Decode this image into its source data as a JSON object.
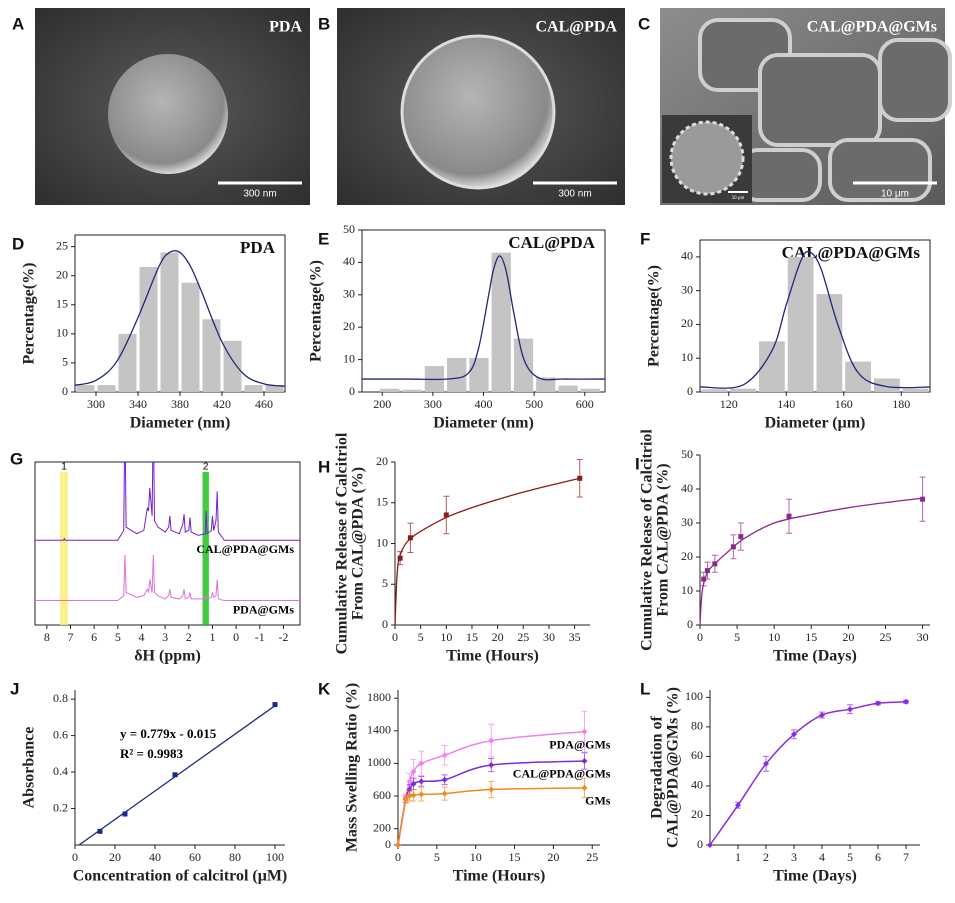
{
  "images": [
    {
      "panel": "A",
      "label": "PDA",
      "scale": "300 nm"
    },
    {
      "panel": "B",
      "label": "CAL@PDA",
      "scale": "300 nm"
    },
    {
      "panel": "C",
      "label": "CAL@PDA@GMs",
      "scale": "10 μm",
      "inset_scale": "50 μm"
    }
  ],
  "chart_data": [
    {
      "type": "histogram",
      "panel": "D",
      "annotation": "PDA",
      "xlabel": "Diameter (nm)",
      "ylabel": "Percentage(%)",
      "bins": [
        280,
        300,
        320,
        340,
        360,
        380,
        400,
        420,
        440,
        460,
        480
      ],
      "values": [
        1.2,
        1.2,
        10,
        21.5,
        24,
        18.8,
        12.5,
        8.8,
        1.2,
        1.2
      ],
      "color": "#c4c4c4",
      "fit": {
        "color": "#1f2a7a",
        "x": [
          280,
          300,
          320,
          340,
          360,
          370,
          380,
          390,
          400,
          420,
          440,
          460,
          480
        ],
        "values": [
          1.16,
          2.0,
          5.3,
          12.8,
          21.6,
          24.0,
          24.0,
          21.6,
          17.5,
          8.6,
          3.2,
          1.4,
          1.0
        ]
      },
      "xlim": [
        280,
        480
      ],
      "xticks": [
        300,
        340,
        380,
        420,
        460
      ],
      "ylim": [
        0,
        27
      ],
      "yticks": [
        0,
        5,
        10,
        15,
        20,
        25
      ],
      "frame": true
    },
    {
      "type": "histogram",
      "panel": "E",
      "annotation": "CAL@PDA",
      "xlabel": "Diameter (nm)",
      "ylabel": "Percentage(%)",
      "bins": [
        193,
        237,
        281,
        325,
        369,
        413,
        457,
        501,
        545,
        589,
        633
      ],
      "values": [
        1,
        0.7,
        8,
        10.5,
        10.5,
        43,
        16.5,
        4.5,
        2,
        1
      ],
      "color": "#c4c4c4",
      "fit": {
        "color": "#1f2a7a",
        "x": [
          160,
          250,
          330,
          370,
          390,
          410,
          420,
          432,
          445,
          460,
          480,
          510,
          560,
          640
        ],
        "values": [
          4,
          4,
          4.0,
          5.8,
          13.3,
          29.8,
          37.9,
          42,
          37.2,
          24.3,
          10.0,
          4.3,
          4,
          4
        ]
      },
      "xlim": [
        160,
        640
      ],
      "xticks": [
        200,
        300,
        400,
        500,
        600
      ],
      "ylim": [
        0,
        50
      ],
      "yticks": [
        0,
        10,
        20,
        30,
        40,
        50
      ],
      "frame": true
    },
    {
      "type": "histogram",
      "panel": "F",
      "annotation": "CAL@PDA@GMs",
      "xlabel": "Diameter (μm)",
      "ylabel": "Percentage(%)",
      "bins": [
        110,
        120,
        130,
        140,
        150,
        160,
        170,
        180,
        190
      ],
      "values": [
        0.8,
        1,
        15,
        40,
        29,
        9,
        4,
        1
      ],
      "color": "#c4c4c4",
      "fit": {
        "color": "#1f2a7a",
        "x": [
          110,
          125,
          135,
          140,
          145,
          148,
          152,
          158,
          165,
          175,
          190
        ],
        "values": [
          1.5,
          2.1,
          12.2,
          25.8,
          38.7,
          41.5,
          36.7,
          19.8,
          5.7,
          1.6,
          1.5
        ]
      },
      "xlim": [
        110,
        190
      ],
      "xticks": [
        120,
        140,
        160,
        180
      ],
      "ylim": [
        0,
        45
      ],
      "yticks": [
        0,
        10,
        20,
        30,
        40
      ],
      "frame": true
    },
    {
      "type": "spectrum",
      "panel": "G",
      "xlabel": "δH (ppm)",
      "highlights": [
        {
          "label": "1",
          "from": 7.45,
          "to": 7.1,
          "color": "#f7f07a"
        },
        {
          "label": "2",
          "from": 1.42,
          "to": 1.15,
          "color": "#1ec31e"
        }
      ],
      "series": [
        {
          "name": "CAL@PDA@GMs",
          "color": "#7420d0",
          "x": [
            8.5,
            7.3,
            7.26,
            7.22,
            5.0,
            4.75,
            4.7,
            4.65,
            4.2,
            3.9,
            3.75,
            3.7,
            3.65,
            3.55,
            3.5,
            3.45,
            3.3,
            3.0,
            2.85,
            2.8,
            2.75,
            2.4,
            2.25,
            2.2,
            2.15,
            2.0,
            1.95,
            1.9,
            1.6,
            1.3,
            1.27,
            1.22,
            1.05,
            1.0,
            0.95,
            0.85,
            0.8,
            0.75,
            0.5,
            -2.7
          ],
          "values": [
            52,
            52,
            53,
            52,
            52,
            58,
            130,
            60,
            56,
            58,
            72,
            70,
            84,
            67,
            130,
            64,
            60,
            57,
            60,
            67,
            58,
            56,
            62,
            68,
            57,
            58,
            66,
            57,
            55,
            56,
            70,
            56,
            58,
            67,
            58,
            64,
            82,
            57,
            52,
            52
          ]
        },
        {
          "name": "PDA@GMs",
          "color": "#e36ee0",
          "x": [
            8.5,
            7.3,
            7.26,
            7.22,
            5.0,
            4.75,
            4.7,
            4.65,
            4.2,
            3.9,
            3.75,
            3.7,
            3.65,
            3.55,
            3.5,
            3.45,
            3.3,
            3.0,
            2.85,
            2.8,
            2.75,
            2.4,
            2.25,
            2.2,
            2.15,
            2.0,
            1.95,
            1.9,
            1.6,
            1.3,
            1.27,
            1.22,
            1.05,
            1.0,
            0.95,
            0.85,
            0.8,
            0.75,
            0.5,
            -2.7
          ],
          "values": [
            15,
            15,
            15,
            15,
            15,
            18,
            43,
            20,
            17,
            18,
            22,
            20,
            28,
            20,
            43,
            20,
            18,
            16,
            18,
            22,
            17,
            16,
            18,
            22,
            16,
            17,
            20,
            16,
            16,
            16,
            18,
            16,
            17,
            20,
            17,
            18,
            28,
            16,
            15,
            15
          ]
        }
      ],
      "xlim": [
        8.5,
        -2.7
      ],
      "xticks": [
        8,
        7,
        6,
        5,
        4,
        3,
        2,
        1,
        0,
        -1,
        -2
      ],
      "ylim": [
        0,
        100
      ],
      "frame": true
    },
    {
      "type": "scatter",
      "panel": "H",
      "xlabel": "Time (Hours)",
      "ylabel": [
        "Cumulative Release of Calcitriol",
        "From CAL@PDA  (%)"
      ],
      "color": "#8b1a1a",
      "x": [
        1,
        3,
        10,
        36
      ],
      "values": [
        8.2,
        10.7,
        13.5,
        18
      ],
      "errors": [
        0.8,
        1.8,
        2.3,
        2.3
      ],
      "fit": {
        "x": [
          0,
          0.3,
          0.6,
          1,
          2,
          3,
          5,
          10,
          15,
          20,
          25,
          30,
          36
        ],
        "values": [
          0,
          5,
          7.5,
          8.6,
          9.9,
          10.6,
          11.5,
          13.2,
          14.4,
          15.4,
          16.3,
          17.1,
          18
        ]
      },
      "xlim": [
        0,
        38
      ],
      "xticks": [
        0,
        5,
        10,
        15,
        20,
        25,
        30,
        35
      ],
      "ylim": [
        0,
        20
      ],
      "yticks": [
        0,
        5,
        10,
        15,
        20
      ]
    },
    {
      "type": "scatter",
      "panel": "I",
      "xlabel": "Time (Days)",
      "ylabel": [
        "Cumulative Release of Calcitriol",
        "From CAL@PDA  (%)"
      ],
      "color": "#8b2a8b",
      "x": [
        0.5,
        1,
        2,
        4.5,
        5.5,
        12,
        30
      ],
      "values": [
        13.5,
        16,
        18,
        23,
        26,
        32,
        37
      ],
      "errors": [
        2,
        2.5,
        2.5,
        3.5,
        4,
        5,
        6.5
      ],
      "fit": {
        "x": [
          0,
          0.3,
          1,
          2,
          4,
          6,
          10,
          15,
          20,
          25,
          30
        ],
        "values": [
          0,
          10,
          15.5,
          18,
          22,
          25.5,
          30,
          32.5,
          34.5,
          36,
          37.3
        ]
      },
      "xlim": [
        0,
        31
      ],
      "xticks": [
        0,
        5,
        10,
        15,
        20,
        25,
        30
      ],
      "ylim": [
        0,
        50
      ],
      "yticks": [
        0,
        10,
        20,
        30,
        40,
        50
      ]
    },
    {
      "type": "scatter",
      "panel": "J",
      "xlabel": "Concentration of calcitrol (μM)",
      "ylabel": "Absorbance",
      "color": "#1a2a8a",
      "annotations": [
        "y = 0.779x - 0.015",
        "R² = 0.9983"
      ],
      "x": [
        12.5,
        25,
        50,
        100
      ],
      "values": [
        0.075,
        0.17,
        0.385,
        0.77
      ],
      "fit": {
        "x": [
          2,
          100
        ],
        "values": [
          0,
          0.764
        ]
      },
      "xlim": [
        0,
        105
      ],
      "xticks": [
        0,
        20,
        40,
        60,
        80,
        100
      ],
      "ylim": [
        0,
        0.85
      ],
      "yticks": [
        0.2,
        0.4,
        0.6,
        0.8
      ]
    },
    {
      "type": "line",
      "panel": "K",
      "xlabel": "Time (Hours)",
      "ylabel": "Mass Swelling Ratio (%)",
      "series": [
        {
          "name": "PDA@GMs",
          "color": "#ee82ee",
          "x": [
            0,
            1,
            1.5,
            2,
            3,
            6,
            12,
            24
          ],
          "values": [
            0,
            580,
            780,
            900,
            1000,
            1100,
            1280,
            1390
          ],
          "errors": [
            0,
            40,
            100,
            150,
            150,
            120,
            200,
            250
          ]
        },
        {
          "name": "CAL@PDA@GMs",
          "color": "#7b2be2",
          "x": [
            0,
            1,
            1.5,
            2,
            3,
            6,
            12,
            24
          ],
          "values": [
            0,
            560,
            680,
            750,
            780,
            800,
            980,
            1030
          ],
          "errors": [
            0,
            40,
            60,
            70,
            60,
            60,
            80,
            100
          ]
        },
        {
          "name": "GMs",
          "color": "#f28a1c",
          "x": [
            0,
            1,
            1.5,
            2,
            3,
            6,
            12,
            24
          ],
          "values": [
            0,
            560,
            600,
            610,
            620,
            630,
            680,
            700
          ],
          "errors": [
            0,
            40,
            60,
            70,
            80,
            80,
            100,
            120
          ]
        }
      ],
      "xlim": [
        0,
        26
      ],
      "xticks": [
        0,
        5,
        10,
        15,
        20,
        25
      ],
      "ylim": [
        0,
        1900
      ],
      "yticks": [
        0,
        200,
        600,
        1000,
        1400,
        1800
      ]
    },
    {
      "type": "line",
      "panel": "L",
      "xlabel": "Time (Days)",
      "ylabel": [
        "Degradation of",
        "CAL@PDA@GMs  (%)"
      ],
      "series": [
        {
          "color": "#8a2be2",
          "x": [
            0,
            1,
            2,
            3,
            4,
            5,
            6,
            7
          ],
          "values": [
            0,
            27,
            55,
            75,
            88,
            92,
            96,
            97
          ],
          "errors": [
            0,
            2,
            5,
            3,
            2,
            3,
            1,
            1
          ]
        }
      ],
      "xlim": [
        0,
        7.5
      ],
      "xticks": [
        1,
        2,
        3,
        4,
        5,
        6,
        7
      ],
      "ylim": [
        0,
        105
      ],
      "yticks": [
        0,
        20,
        40,
        60,
        80,
        100
      ]
    }
  ]
}
